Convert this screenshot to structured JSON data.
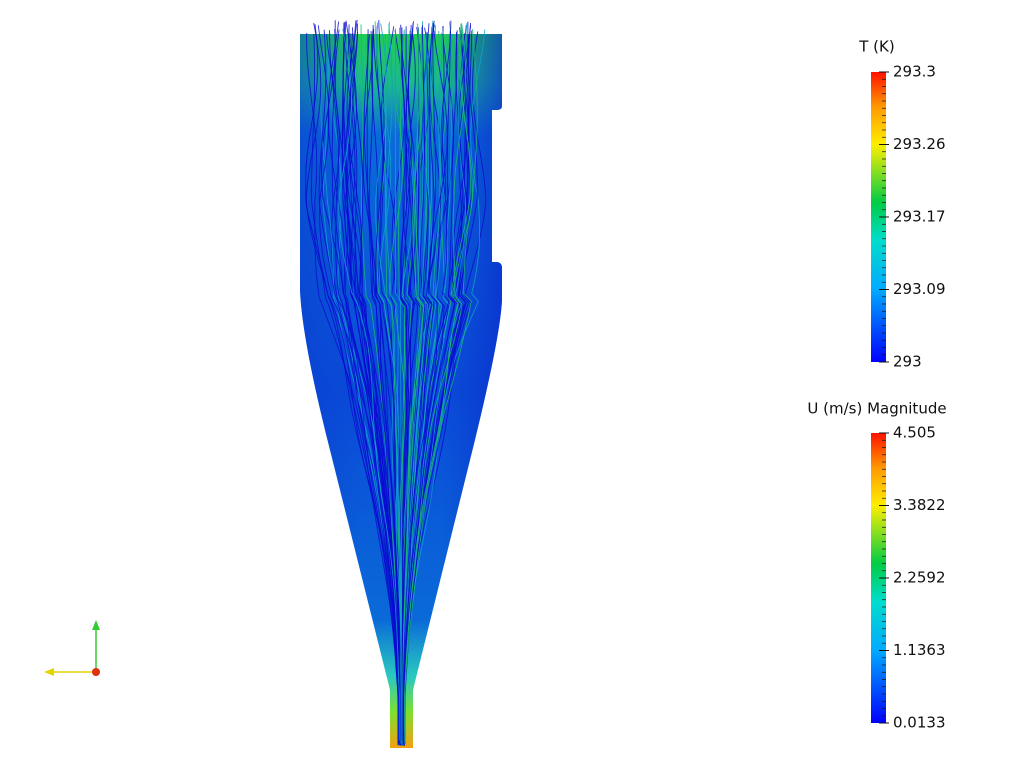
{
  "legends": [
    {
      "title": "T (K)",
      "labels": [
        "293.3",
        "293.26",
        "293.17",
        "293.09",
        "293"
      ]
    },
    {
      "title": "U (m/s) Magnitude",
      "labels": [
        "4.505",
        "3.3822",
        "2.2592",
        "1.1363",
        "0.0133"
      ]
    }
  ]
}
